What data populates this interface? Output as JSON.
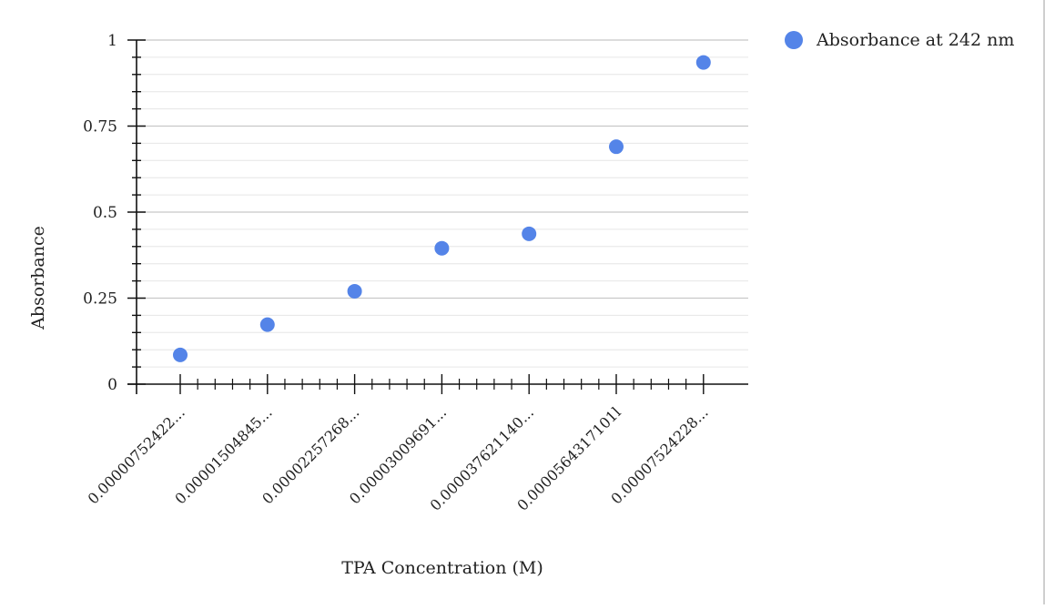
{
  "chart_data": {
    "type": "scatter",
    "categories": [
      "0.00000752422...",
      "0.00001504845...",
      "0.00002257268...",
      "0.00003009691...",
      "0.000037621140...",
      "0.0000564317101l",
      "0.00007524228..."
    ],
    "series": [
      {
        "name": "Absorbance at 242 nm",
        "color": "#5484e8",
        "values": [
          0.085,
          0.173,
          0.27,
          0.395,
          0.437,
          0.69,
          0.935
        ]
      }
    ],
    "xlabel": "TPA Concentration (M)",
    "ylabel": "Absorbance",
    "y_ticks": [
      "0",
      "0.25",
      "0.5",
      "0.75",
      "1"
    ],
    "ylim": [
      0,
      1
    ],
    "grid": true,
    "legend_position": "top-right"
  }
}
